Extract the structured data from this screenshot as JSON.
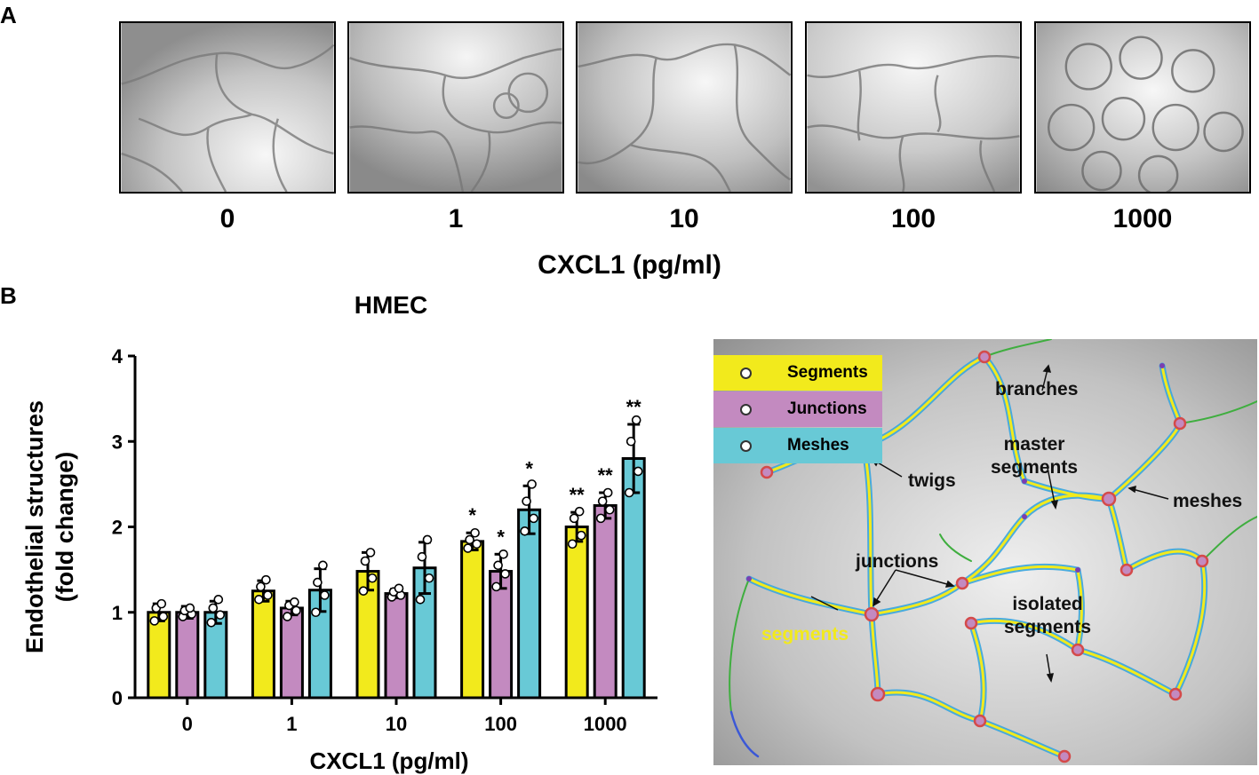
{
  "panel_a": {
    "letter": "A",
    "concentrations": [
      "0",
      "1",
      "10",
      "100",
      "1000"
    ],
    "x_title": "CXCL1 (pg/ml)"
  },
  "panel_b": {
    "letter": "B",
    "legend": {
      "segments": "Segments",
      "junctions": "Junctions",
      "meshes": "Meshes"
    },
    "annotations": {
      "branches": "branches",
      "master": "master",
      "master_segments": "segments",
      "twigs": "twigs",
      "meshes": "meshes",
      "junctions": "junctions",
      "isolated": "isolated",
      "isolated_segments": "segments",
      "segments": "segments"
    }
  },
  "colors": {
    "segments": "#f2ea1c",
    "junctions": "#c38ac0",
    "meshes": "#68c9d6",
    "axis": "#000000"
  },
  "chart_data": {
    "type": "bar",
    "title": "HMEC",
    "xlabel": "CXCL1 (pg/ml)",
    "ylabel_line1": "Endothelial structures",
    "ylabel_line2": "(fold change)",
    "categories": [
      "0",
      "1",
      "10",
      "100",
      "1000"
    ],
    "ylim": [
      0,
      4
    ],
    "yticks": [
      "0",
      "1",
      "2",
      "3",
      "4"
    ],
    "series": [
      {
        "name": "Segments",
        "color": "#f2ea1c",
        "values": [
          1.0,
          1.25,
          1.48,
          1.83,
          2.0
        ],
        "errors": [
          0.1,
          0.12,
          0.22,
          0.1,
          0.17
        ],
        "points": [
          [
            0.9,
            0.95,
            1.05,
            1.1
          ],
          [
            1.15,
            1.2,
            1.3,
            1.38
          ],
          [
            1.25,
            1.4,
            1.6,
            1.7
          ],
          [
            1.75,
            1.8,
            1.85,
            1.93
          ],
          [
            1.8,
            1.9,
            2.1,
            2.18
          ]
        ],
        "signif": [
          "",
          "",
          "",
          "*",
          "**"
        ]
      },
      {
        "name": "Junctions",
        "color": "#c38ac0",
        "values": [
          1.0,
          1.05,
          1.22,
          1.48,
          2.25
        ],
        "errors": [
          0.07,
          0.08,
          0.05,
          0.2,
          0.15
        ],
        "points": [
          [
            0.95,
            0.98,
            1.02,
            1.05
          ],
          [
            0.95,
            1.02,
            1.08,
            1.12
          ],
          [
            1.18,
            1.2,
            1.24,
            1.28
          ],
          [
            1.3,
            1.45,
            1.55,
            1.68
          ],
          [
            2.1,
            2.2,
            2.3,
            2.4
          ]
        ],
        "signif": [
          "",
          "",
          "",
          "*",
          "**"
        ]
      },
      {
        "name": "Meshes",
        "color": "#68c9d6",
        "values": [
          1.0,
          1.26,
          1.52,
          2.2,
          2.8
        ],
        "errors": [
          0.13,
          0.25,
          0.3,
          0.28,
          0.4
        ],
        "points": [
          [
            0.88,
            0.97,
            1.05,
            1.15
          ],
          [
            1.0,
            1.2,
            1.35,
            1.55
          ],
          [
            1.15,
            1.4,
            1.65,
            1.85
          ],
          [
            1.95,
            2.1,
            2.3,
            2.5
          ],
          [
            2.4,
            2.65,
            3.0,
            3.25
          ]
        ],
        "signif": [
          "",
          "",
          "",
          "*",
          "**"
        ]
      }
    ]
  }
}
